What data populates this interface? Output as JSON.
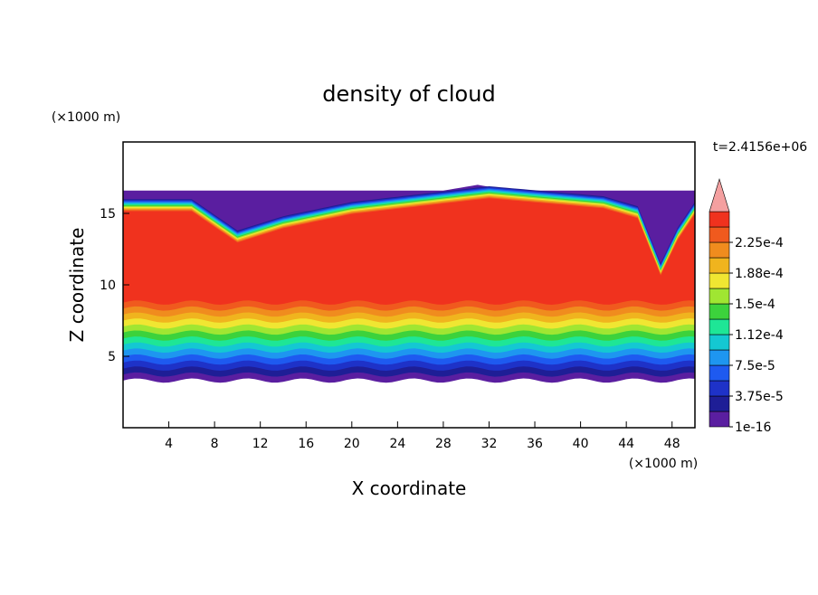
{
  "chart_data": {
    "type": "contour",
    "title": "density of cloud",
    "x_label": "X coordinate",
    "y_label": "Z coordinate",
    "x_unit": "(×1000 m)",
    "y_unit": "(×1000 m)",
    "time_label": "t=2.4156e+06",
    "xlim": [
      0,
      50
    ],
    "ylim": [
      0,
      20
    ],
    "xticks": [
      4,
      8,
      12,
      16,
      20,
      24,
      28,
      32,
      36,
      40,
      44,
      48
    ],
    "yticks": [
      5,
      10,
      15
    ],
    "levels": [
      {
        "value": 1e-16,
        "label": "1e-16"
      },
      {
        "value": 3.75e-05,
        "label": "3.75e-5"
      },
      {
        "value": 7.5e-05,
        "label": "7.5e-5"
      },
      {
        "value": 0.000112,
        "label": "1.12e-4"
      },
      {
        "value": 0.00015,
        "label": "1.5e-4"
      },
      {
        "value": 0.000188,
        "label": "1.88e-4"
      },
      {
        "value": 0.000225,
        "label": "2.25e-4"
      }
    ],
    "colors": [
      "#5a1ea0",
      "#1e1e96",
      "#1e32c8",
      "#1e5af0",
      "#1e96f0",
      "#14c8d2",
      "#1ee696",
      "#3cd23c",
      "#a0e632",
      "#f0e632",
      "#f0b41e",
      "#f08c1e",
      "#f05a1e",
      "#f0321e"
    ],
    "extend_color": "#f4a0a0"
  }
}
